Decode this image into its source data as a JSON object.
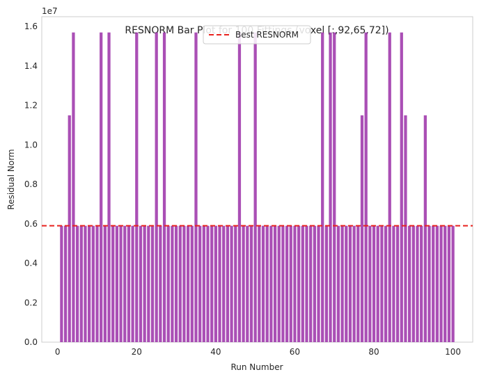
{
  "chart_data": {
    "type": "bar",
    "title": "RESNORM Bar Plot for 100 Fittings (voxel [:,92,65,72])",
    "xlabel": "Run Number",
    "ylabel": "Residual Norm",
    "y_offset_label": "1e7",
    "xlim": [
      -4,
      105
    ],
    "ylim": [
      0,
      1.65
    ],
    "x_ticks": [
      0,
      20,
      40,
      60,
      80,
      100
    ],
    "y_ticks": [
      0.0,
      0.2,
      0.4,
      0.6,
      0.8,
      1.0,
      1.2,
      1.4,
      1.6
    ],
    "x_tick_labels": [
      "0",
      "20",
      "40",
      "60",
      "80",
      "100"
    ],
    "y_tick_labels": [
      "0.0",
      "0.2",
      "0.4",
      "0.6",
      "0.8",
      "1.0",
      "1.2",
      "1.4",
      "1.6"
    ],
    "bar_color": "#9b30a8",
    "reference_line": {
      "name": "Best RESNORM",
      "value": 0.59,
      "color": "#e8211d",
      "style": "dashed"
    },
    "legend": {
      "placement": "top-center",
      "entries": [
        "Best RESNORM"
      ]
    },
    "grid": false,
    "x": [
      1,
      2,
      3,
      4,
      5,
      6,
      7,
      8,
      9,
      10,
      11,
      12,
      13,
      14,
      15,
      16,
      17,
      18,
      19,
      20,
      21,
      22,
      23,
      24,
      25,
      26,
      27,
      28,
      29,
      30,
      31,
      32,
      33,
      34,
      35,
      36,
      37,
      38,
      39,
      40,
      41,
      42,
      43,
      44,
      45,
      46,
      47,
      48,
      49,
      50,
      51,
      52,
      53,
      54,
      55,
      56,
      57,
      58,
      59,
      60,
      61,
      62,
      63,
      64,
      65,
      66,
      67,
      68,
      69,
      70,
      71,
      72,
      73,
      74,
      75,
      76,
      77,
      78,
      79,
      80,
      81,
      82,
      83,
      84,
      85,
      86,
      87,
      88,
      89,
      90,
      91,
      92,
      93,
      94,
      95,
      96,
      97,
      98,
      99,
      100
    ],
    "values": [
      0.59,
      0.59,
      1.15,
      1.57,
      0.59,
      0.59,
      0.59,
      0.59,
      0.59,
      0.59,
      1.57,
      0.59,
      1.57,
      0.59,
      0.59,
      0.59,
      0.59,
      0.59,
      0.59,
      1.57,
      0.59,
      0.59,
      0.59,
      0.59,
      1.57,
      0.59,
      1.57,
      0.59,
      0.59,
      0.59,
      0.59,
      0.59,
      0.59,
      0.59,
      1.57,
      0.59,
      0.59,
      0.59,
      0.59,
      0.59,
      0.59,
      0.59,
      0.59,
      0.59,
      0.59,
      1.57,
      0.59,
      0.59,
      0.59,
      1.57,
      0.59,
      0.59,
      0.59,
      0.59,
      0.59,
      0.59,
      0.59,
      0.59,
      0.59,
      0.59,
      0.59,
      0.59,
      0.59,
      0.59,
      0.59,
      0.59,
      1.57,
      0.59,
      1.57,
      1.57,
      0.59,
      0.59,
      0.59,
      0.59,
      0.59,
      0.59,
      1.15,
      1.57,
      0.59,
      0.59,
      0.59,
      0.59,
      0.59,
      1.57,
      0.59,
      0.59,
      1.57,
      1.15,
      0.59,
      0.59,
      0.59,
      0.59,
      1.15,
      0.59,
      0.59,
      0.59,
      0.59,
      0.59,
      0.59,
      0.59
    ]
  }
}
